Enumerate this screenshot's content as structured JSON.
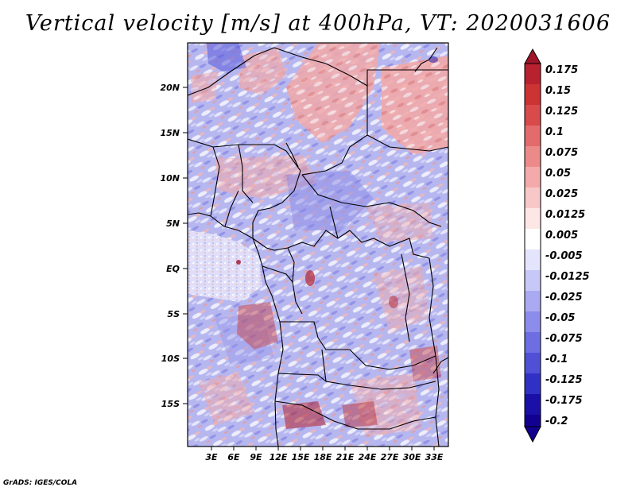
{
  "title": "Vertical velocity [m/s] at 400hPa, VT: 2020031606",
  "credit": "GrADS: IGES/COLA",
  "latitude_labels": [
    "20N",
    "15N",
    "10N",
    "5N",
    "EQ",
    "5S",
    "10S",
    "15S"
  ],
  "longitude_labels": [
    "3E",
    "6E",
    "9E",
    "12E",
    "15E",
    "18E",
    "21E",
    "24E",
    "27E",
    "30E",
    "33E"
  ],
  "colorbar": {
    "levels": [
      "0.175",
      "0.15",
      "0.125",
      "0.1",
      "0.075",
      "0.05",
      "0.025",
      "0.0125",
      "0.005",
      "-0.005",
      "-0.0125",
      "-0.025",
      "-0.05",
      "-0.075",
      "-0.1",
      "-0.125",
      "-0.175",
      "-0.2"
    ],
    "colors": [
      "#a0142a",
      "#b8212e",
      "#cc3333",
      "#d94a4a",
      "#e36b6b",
      "#ec8a8a",
      "#f4aaaa",
      "#f8c8c8",
      "#fde6e6",
      "#ffffff",
      "#e4e4fc",
      "#c8c8f8",
      "#aaaaf2",
      "#8c8cec",
      "#6e6ee2",
      "#5050d6",
      "#3030c4",
      "#1a10a8",
      "#120090"
    ]
  }
}
